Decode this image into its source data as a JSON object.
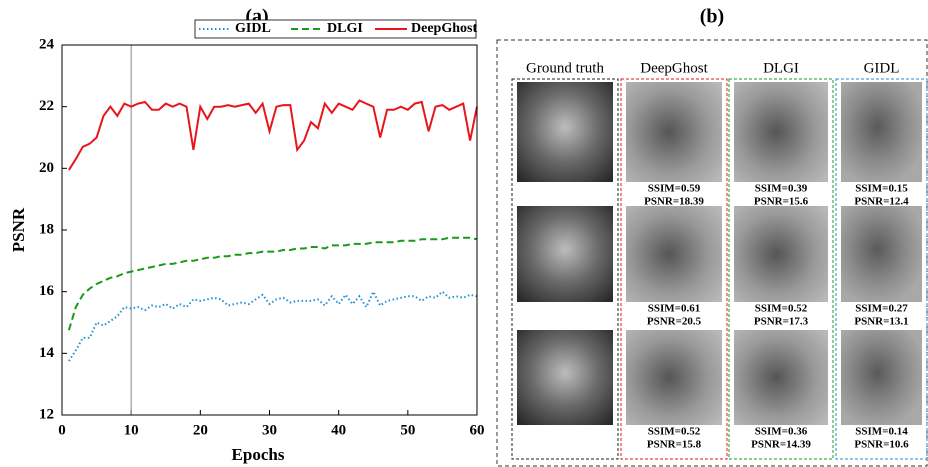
{
  "chart_data": {
    "type": "line",
    "title": "(a)",
    "x_label": "Epochs",
    "y_label": "PSNR",
    "x": [
      1,
      2,
      3,
      4,
      5,
      6,
      7,
      8,
      9,
      10,
      11,
      12,
      13,
      14,
      15,
      16,
      17,
      18,
      19,
      20,
      21,
      22,
      23,
      24,
      25,
      26,
      27,
      28,
      29,
      30,
      31,
      32,
      33,
      34,
      35,
      36,
      37,
      38,
      39,
      40,
      41,
      42,
      43,
      44,
      45,
      46,
      47,
      48,
      49,
      50,
      51,
      52,
      53,
      54,
      55,
      56,
      57,
      58,
      59,
      60
    ],
    "series": [
      {
        "name": "GIDL",
        "color": "#1f8fd6",
        "style": "dotted",
        "values": [
          13.75,
          14.1,
          14.5,
          14.5,
          15.0,
          14.9,
          15.05,
          15.2,
          15.5,
          15.45,
          15.5,
          15.4,
          15.55,
          15.5,
          15.6,
          15.45,
          15.6,
          15.5,
          15.75,
          15.7,
          15.75,
          15.8,
          15.75,
          15.55,
          15.6,
          15.65,
          15.6,
          15.75,
          15.9,
          15.6,
          15.75,
          15.8,
          15.65,
          15.7,
          15.7,
          15.7,
          15.75,
          15.55,
          15.85,
          15.6,
          15.9,
          15.6,
          15.85,
          15.5,
          16.0,
          15.55,
          15.7,
          15.75,
          15.8,
          15.85,
          15.85,
          15.7,
          15.85,
          15.8,
          16.0,
          15.8,
          15.85,
          15.8,
          15.9,
          15.85
        ]
      },
      {
        "name": "DLGI",
        "color": "#1a9a1a",
        "style": "dashed",
        "values": [
          14.75,
          15.5,
          15.9,
          16.1,
          16.25,
          16.35,
          16.45,
          16.5,
          16.6,
          16.65,
          16.7,
          16.75,
          16.8,
          16.85,
          16.9,
          16.9,
          16.95,
          17.0,
          17.0,
          17.05,
          17.1,
          17.1,
          17.15,
          17.15,
          17.2,
          17.2,
          17.25,
          17.25,
          17.3,
          17.3,
          17.3,
          17.35,
          17.35,
          17.4,
          17.4,
          17.45,
          17.45,
          17.4,
          17.5,
          17.5,
          17.5,
          17.55,
          17.55,
          17.55,
          17.6,
          17.6,
          17.6,
          17.6,
          17.65,
          17.65,
          17.65,
          17.7,
          17.7,
          17.7,
          17.7,
          17.75,
          17.75,
          17.75,
          17.75,
          17.7
        ]
      },
      {
        "name": "DeepGhost",
        "color": "#e8161b",
        "style": "solid",
        "values": [
          19.95,
          20.3,
          20.7,
          20.8,
          21.0,
          21.7,
          22.0,
          21.7,
          22.1,
          22.0,
          22.1,
          22.15,
          21.9,
          21.9,
          22.1,
          22.0,
          22.1,
          22.0,
          20.6,
          22.0,
          21.6,
          22.0,
          22.0,
          22.05,
          22.0,
          22.05,
          22.1,
          21.8,
          22.1,
          21.2,
          22.0,
          22.05,
          22.05,
          20.6,
          20.9,
          21.5,
          21.3,
          22.1,
          21.8,
          22.1,
          22.0,
          21.9,
          22.2,
          22.1,
          22.0,
          21.0,
          21.9,
          21.9,
          22.0,
          21.9,
          22.1,
          22.15,
          21.2,
          22.0,
          22.05,
          21.9,
          22.0,
          22.1,
          20.9,
          22.0
        ]
      }
    ],
    "xlim": [
      0,
      60
    ],
    "xticks": [
      0,
      10,
      20,
      30,
      40,
      50,
      60
    ],
    "ylim": [
      12,
      24
    ],
    "yticks": [
      12,
      14,
      16,
      18,
      20,
      22,
      24
    ],
    "vline_x": 10,
    "vline_color": "#888888",
    "legend": "top-right",
    "grid": false
  },
  "panel_b": {
    "title": "(b)",
    "columns": [
      "Ground truth",
      "DeepGhost",
      "DLGI",
      "GIDL"
    ],
    "column_colors": [
      "#222222",
      "#e8161b",
      "#1a9a1a",
      "#1f8fd6"
    ],
    "rows": [
      [
        [
          "SSIM=0.59",
          "PSNR=18.39"
        ],
        [
          "SSIM=0.39",
          "PSNR=15.6"
        ],
        [
          "SSIM=0.15",
          "PSNR=12.4"
        ]
      ],
      [
        [
          "SSIM=0.61",
          "PSNR=20.5"
        ],
        [
          "SSIM=0.52",
          "PSNR=17.3"
        ],
        [
          "SSIM=0.27",
          "PSNR=13.1"
        ]
      ],
      [
        [
          "SSIM=0.52",
          "PSNR=15.8"
        ],
        [
          "SSIM=0.36",
          "PSNR=14.39"
        ],
        [
          "SSIM=0.14",
          "PSNR=10.6"
        ]
      ]
    ]
  }
}
